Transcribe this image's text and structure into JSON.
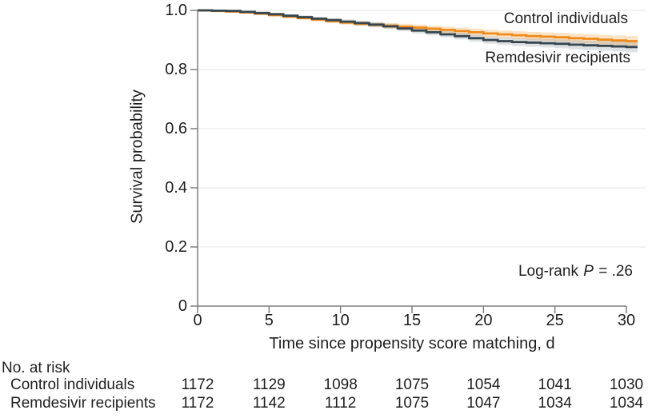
{
  "chart_data": {
    "type": "line",
    "subtype": "kaplan_meier_step",
    "title": "",
    "xlabel": "Time since propensity score matching, d",
    "ylabel": "Survival probability",
    "xlim": [
      0,
      30
    ],
    "ylim": [
      0,
      1.0
    ],
    "x_ticks": [
      "0",
      "5",
      "10",
      "15",
      "20",
      "25",
      "30"
    ],
    "x_tick_values": [
      0,
      5,
      10,
      15,
      20,
      25,
      30
    ],
    "y_ticks": [
      "0",
      "0.2",
      "0.4",
      "0.6",
      "0.8",
      "1.0"
    ],
    "y_tick_values": [
      0,
      0.2,
      0.4,
      0.6,
      0.8,
      1.0
    ],
    "grid": "horizontal",
    "legend_position": "direct-labels-right",
    "x": [
      0,
      1,
      2,
      3,
      4,
      5,
      6,
      7,
      8,
      9,
      10,
      11,
      12,
      13,
      14,
      15,
      16,
      17,
      18,
      19,
      20,
      21,
      22,
      23,
      24,
      25,
      26,
      27,
      28,
      29,
      30
    ],
    "ci_half_width": [
      0.002,
      0.003,
      0.0035,
      0.004,
      0.0045,
      0.005,
      0.0055,
      0.006,
      0.0065,
      0.007,
      0.0075,
      0.008,
      0.0085,
      0.009,
      0.0095,
      0.01,
      0.0105,
      0.011,
      0.0115,
      0.012,
      0.0125,
      0.013,
      0.0135,
      0.014,
      0.0145,
      0.015,
      0.0155,
      0.016,
      0.0165,
      0.017,
      0.0175
    ],
    "series": [
      {
        "id": "control",
        "name": "Control individuals",
        "color": "#EF8B1C",
        "ci_color": "rgba(240,148,30,0.25)",
        "values": [
          1.0,
          0.998,
          0.996,
          0.993,
          0.989,
          0.984,
          0.979,
          0.974,
          0.969,
          0.964,
          0.959,
          0.955,
          0.951,
          0.948,
          0.945,
          0.942,
          0.938,
          0.934,
          0.93,
          0.926,
          0.922,
          0.919,
          0.916,
          0.913,
          0.911,
          0.909,
          0.906,
          0.904,
          0.901,
          0.898,
          0.896
        ]
      },
      {
        "id": "remdesivir",
        "name": "Remdesivir recipients",
        "color": "#36454E",
        "ci_color": "rgba(74,90,100,0.18)",
        "values": [
          1.0,
          0.999,
          0.998,
          0.995,
          0.991,
          0.987,
          0.982,
          0.977,
          0.972,
          0.967,
          0.962,
          0.957,
          0.952,
          0.946,
          0.939,
          0.932,
          0.926,
          0.919,
          0.913,
          0.906,
          0.9,
          0.896,
          0.893,
          0.891,
          0.889,
          0.887,
          0.884,
          0.882,
          0.88,
          0.878,
          0.876
        ]
      }
    ],
    "annotations": {
      "log_rank": {
        "prefix": "Log-rank ",
        "p_symbol": "P",
        "suffix": " = .26",
        "full_text": "Log-rank P = .26"
      }
    }
  },
  "risk_table": {
    "title": "No. at risk",
    "rows": [
      {
        "label": "Control individuals",
        "values": [
          "1172",
          "1129",
          "1098",
          "1075",
          "1054",
          "1041",
          "1030"
        ]
      },
      {
        "label": "Remdesivir recipients",
        "values": [
          "1172",
          "1142",
          "1112",
          "1075",
          "1047",
          "1034",
          "1034"
        ]
      }
    ]
  },
  "colors": {
    "axis": "#7f7f7f",
    "grid": "#e9e9e9",
    "text": "#1f1f1f",
    "background": "#ffffff"
  }
}
